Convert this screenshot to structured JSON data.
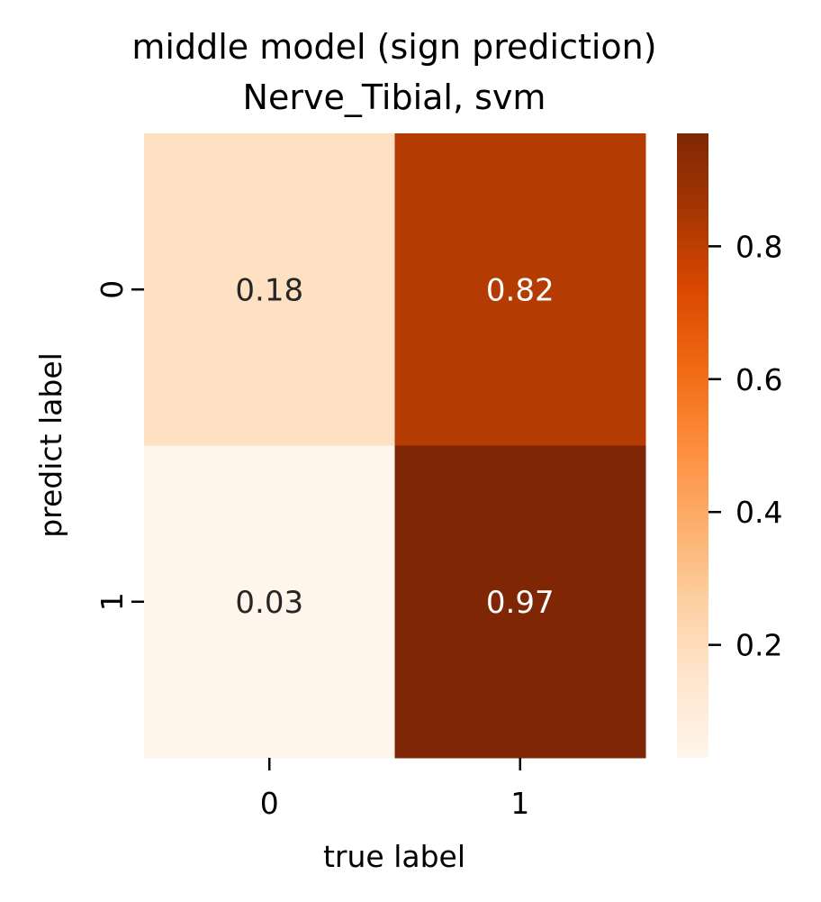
{
  "chart_data": {
    "type": "heatmap",
    "title": "middle model (sign prediction)",
    "subtitle": "Nerve_Tibial, svm",
    "xlabel": "true label",
    "ylabel": "predict label",
    "x_categories": [
      "0",
      "1"
    ],
    "y_categories": [
      "0",
      "1"
    ],
    "values": [
      [
        0.18,
        0.82
      ],
      [
        0.03,
        0.97
      ]
    ],
    "value_labels": [
      [
        "0.18",
        "0.82"
      ],
      [
        "0.03",
        "0.97"
      ]
    ],
    "colormap": "Oranges",
    "color_stops": [
      "#fff5eb",
      "#fee6ce",
      "#fdd0a2",
      "#fdae6b",
      "#fd8d3c",
      "#f16913",
      "#d94801",
      "#a63603",
      "#7f2704"
    ],
    "colorbar": {
      "range": [
        0.03,
        0.97
      ],
      "ticks": [
        0.2,
        0.4,
        0.6,
        0.8
      ],
      "tick_labels": [
        "0.2",
        "0.4",
        "0.6",
        "0.8"
      ]
    },
    "label_colors": {
      "dark_text": "#262626",
      "light_text": "#ffffff"
    },
    "grid": false
  }
}
